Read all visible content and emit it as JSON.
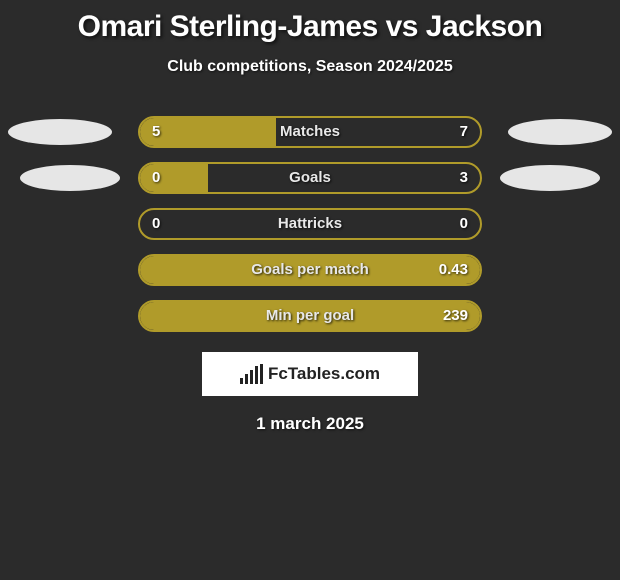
{
  "title": "Omari Sterling-James vs Jackson",
  "subtitle": "Club competitions, Season 2024/2025",
  "date": "1 march 2025",
  "logo_text": "FcTables.com",
  "colors": {
    "background": "#2b2b2b",
    "bar_border": "#b09b2a",
    "bar_fill": "#b09b2a",
    "ellipse": "#e6e6e6",
    "text": "#ffffff",
    "logo_bg": "#ffffff",
    "logo_fg": "#222222"
  },
  "rows": [
    {
      "label": "Matches",
      "left": "5",
      "right": "7",
      "fill_pct": 40,
      "show_ellipses": "wide"
    },
    {
      "label": "Goals",
      "left": "0",
      "right": "3",
      "fill_pct": 20,
      "show_ellipses": "narrow"
    },
    {
      "label": "Hattricks",
      "left": "0",
      "right": "0",
      "fill_pct": 0,
      "show_ellipses": "none"
    },
    {
      "label": "Goals per match",
      "left": "",
      "right": "0.43",
      "fill_pct": 100,
      "show_ellipses": "none"
    },
    {
      "label": "Min per goal",
      "left": "",
      "right": "239",
      "fill_pct": 100,
      "show_ellipses": "none"
    }
  ]
}
